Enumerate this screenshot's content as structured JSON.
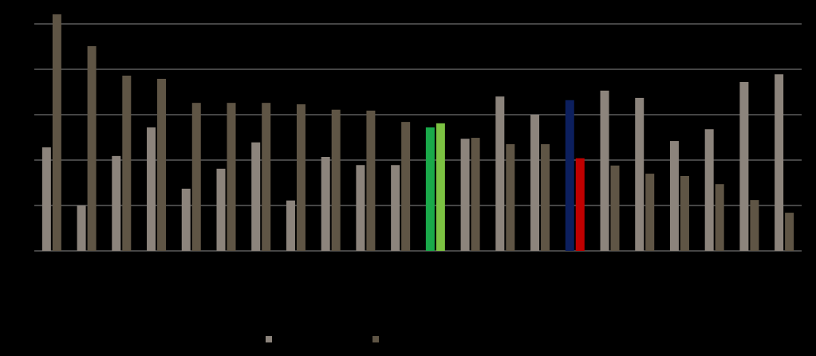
{
  "chart_data": {
    "type": "bar",
    "categories": [
      null,
      null,
      null,
      null,
      null,
      null,
      null,
      null,
      null,
      null,
      null,
      null,
      null,
      null,
      null,
      null,
      null,
      null,
      null,
      null,
      null,
      null
    ],
    "series": [
      {
        "color": "#8c847c",
        "colors": [
          "#8c847c",
          "#8c847c",
          "#8c847c",
          "#8c847c",
          "#8c847c",
          "#8c847c",
          "#8c847c",
          "#8c847c",
          "#8c847c",
          "#8c847c",
          "#8c847c",
          "#1aaa4a",
          "#8c847c",
          "#8c847c",
          "#8c847c",
          "#0c1f5e",
          "#8c847c",
          "#8c847c",
          "#8c847c",
          "#8c847c",
          "#8c847c",
          "#8c847c"
        ],
        "values": [
          2.28,
          1.0,
          2.09,
          2.72,
          1.37,
          1.81,
          2.39,
          1.11,
          2.07,
          1.89,
          1.89,
          2.72,
          2.47,
          3.4,
          3.0,
          3.32,
          3.53,
          3.37,
          2.42,
          2.68,
          3.72,
          3.89
        ]
      },
      {
        "color": "#5f5545",
        "colors": [
          "#5f5545",
          "#5f5545",
          "#5f5545",
          "#5f5545",
          "#5f5545",
          "#5f5545",
          "#5f5545",
          "#5f5545",
          "#5f5545",
          "#5f5545",
          "#5f5545",
          "#7cc242",
          "#5f5545",
          "#5f5545",
          "#5f5545",
          "#c00000",
          "#5f5545",
          "#5f5545",
          "#5f5545",
          "#5f5545",
          "#5f5545",
          "#5f5545"
        ],
        "values": [
          5.21,
          4.51,
          3.86,
          3.79,
          3.26,
          3.26,
          3.26,
          3.23,
          3.11,
          3.09,
          2.84,
          2.81,
          2.49,
          2.35,
          2.35,
          2.04,
          1.88,
          1.7,
          1.65,
          1.47,
          1.12,
          0.84
        ]
      }
    ],
    "ylim": [
      0,
      5.5
    ],
    "yticks": [
      0,
      1,
      2,
      3,
      4,
      5
    ],
    "grid": true
  }
}
